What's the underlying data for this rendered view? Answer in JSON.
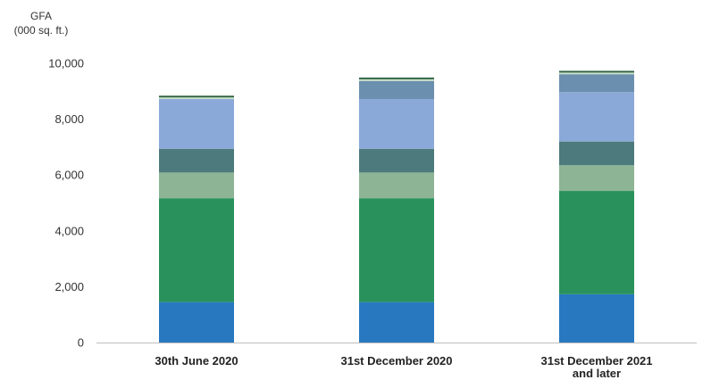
{
  "chart_data": {
    "type": "bar",
    "stacked": true,
    "ylabel_lines": [
      "GFA",
      "(000 sq. ft.)"
    ],
    "xlabel": "",
    "ylim": [
      0,
      10000
    ],
    "yticks": [
      0,
      2000,
      4000,
      6000,
      8000,
      10000
    ],
    "ytick_labels": [
      "0",
      "2,000",
      "4,000",
      "6,000",
      "8,000",
      "10,000"
    ],
    "categories": [
      [
        "30th June 2020"
      ],
      [
        "31st December 2020"
      ],
      [
        "31st December 2021",
        "and later"
      ]
    ],
    "grid": false,
    "series": [
      {
        "color": "#2878c0",
        "values": [
          1450,
          1450,
          1730
        ]
      },
      {
        "color": "#29925c",
        "values": [
          3720,
          3720,
          3700
        ]
      },
      {
        "color": "#8db495",
        "values": [
          920,
          920,
          920
        ]
      },
      {
        "color": "#4d7a7c",
        "values": [
          850,
          850,
          850
        ]
      },
      {
        "color": "#8aa9d8",
        "values": [
          1780,
          1780,
          1770
        ]
      },
      {
        "color": "#6b8fae",
        "values": [
          0,
          650,
          640
        ]
      },
      {
        "color": "#c7dfc4",
        "values": [
          60,
          60,
          60
        ]
      },
      {
        "color": "#2d6040",
        "values": [
          60,
          60,
          60
        ]
      }
    ]
  }
}
